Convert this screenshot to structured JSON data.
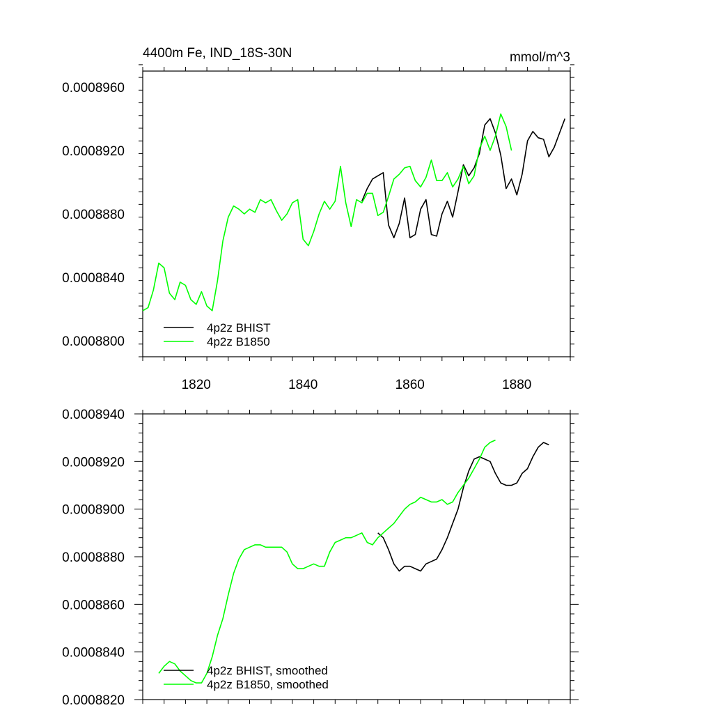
{
  "chart_data": [
    {
      "type": "line",
      "title_left": "4400m Fe, IND_18S-30N",
      "title_right": "mmol/m^3",
      "xlabel": "",
      "ylabel": "",
      "xlim": [
        1810,
        1890
      ],
      "ylim": [
        0.000879,
        0.000897
      ],
      "x_ticks": [
        1820,
        1840,
        1860,
        1880
      ],
      "x_tick_labels": [
        "1820",
        "1840",
        "1860",
        "1880"
      ],
      "y_ticks": [
        0.00088,
        0.000884,
        0.000888,
        0.000892,
        0.000896
      ],
      "y_tick_labels": [
        "0.0008800",
        "0.0008840",
        "0.0008880",
        "0.0008920",
        "0.0008960"
      ],
      "legend_position": "bottom-left",
      "series": [
        {
          "name": "4p2z BHIST",
          "color": "#000000",
          "x": [
            1851,
            1852,
            1853,
            1854,
            1855,
            1856,
            1857,
            1858,
            1859,
            1860,
            1861,
            1862,
            1863,
            1864,
            1865,
            1866,
            1867,
            1868,
            1869,
            1870,
            1871,
            1872,
            1873,
            1874,
            1875,
            1876,
            1877,
            1878,
            1879,
            1880,
            1881,
            1882,
            1883,
            1884,
            1885,
            1886,
            1887,
            1888,
            1889
          ],
          "y": [
            0.0008888,
            0.0008896,
            0.0008902,
            0.0008904,
            0.0008906,
            0.0008873,
            0.0008865,
            0.0008874,
            0.000889,
            0.0008865,
            0.0008867,
            0.0008883,
            0.0008889,
            0.0008867,
            0.0008866,
            0.000888,
            0.0008888,
            0.0008878,
            0.0008894,
            0.0008911,
            0.0008904,
            0.0008909,
            0.0008918,
            0.0008936,
            0.000894,
            0.0008931,
            0.0008917,
            0.0008896,
            0.0008902,
            0.0008892,
            0.0008905,
            0.0008926,
            0.0008932,
            0.0008928,
            0.0008927,
            0.0008916,
            0.0008922,
            0.0008931,
            0.000894
          ]
        },
        {
          "name": "4p2z B1850",
          "color": "#00ff00",
          "x": [
            1810,
            1811,
            1812,
            1813,
            1814,
            1815,
            1816,
            1817,
            1818,
            1819,
            1820,
            1821,
            1822,
            1823,
            1824,
            1825,
            1826,
            1827,
            1828,
            1829,
            1830,
            1831,
            1832,
            1833,
            1834,
            1835,
            1836,
            1837,
            1838,
            1839,
            1840,
            1841,
            1842,
            1843,
            1844,
            1845,
            1846,
            1847,
            1848,
            1849,
            1850,
            1851,
            1852,
            1853,
            1854,
            1855,
            1856,
            1857,
            1858,
            1859,
            1860,
            1861,
            1862,
            1863,
            1864,
            1865,
            1866,
            1867,
            1868,
            1869,
            1870,
            1871,
            1872,
            1873,
            1874,
            1875,
            1876,
            1877,
            1878,
            1879
          ],
          "y": [
            0.0008819,
            0.0008821,
            0.0008832,
            0.0008849,
            0.0008846,
            0.000883,
            0.0008826,
            0.0008837,
            0.0008835,
            0.0008826,
            0.0008823,
            0.0008831,
            0.0008822,
            0.0008819,
            0.0008838,
            0.0008863,
            0.0008878,
            0.0008885,
            0.0008883,
            0.000888,
            0.0008883,
            0.0008881,
            0.0008889,
            0.0008887,
            0.0008889,
            0.0008882,
            0.0008876,
            0.000888,
            0.0008887,
            0.0008889,
            0.0008864,
            0.000886,
            0.0008869,
            0.000888,
            0.0008888,
            0.0008883,
            0.0008888,
            0.000891,
            0.0008887,
            0.0008872,
            0.0008889,
            0.0008887,
            0.0008893,
            0.0008893,
            0.0008879,
            0.0008881,
            0.0008891,
            0.0008902,
            0.0008905,
            0.0008909,
            0.000891,
            0.0008901,
            0.0008897,
            0.0008903,
            0.0008914,
            0.0008901,
            0.0008901,
            0.0008906,
            0.0008897,
            0.0008902,
            0.000891,
            0.0008899,
            0.0008904,
            0.0008921,
            0.0008929,
            0.000892,
            0.0008929,
            0.0008943,
            0.0008935,
            0.000892
          ]
        }
      ]
    },
    {
      "type": "line",
      "title_left": "",
      "title_right": "",
      "xlabel": "",
      "ylabel": "",
      "xlim": [
        1810,
        1890
      ],
      "ylim": [
        0.000882,
        0.000894
      ],
      "x_ticks": [
        1820,
        1840,
        1860,
        1880
      ],
      "x_tick_labels": [],
      "y_ticks": [
        0.000882,
        0.000884,
        0.000886,
        0.000888,
        0.00089,
        0.000892,
        0.000894
      ],
      "y_tick_labels": [
        "0.0008820",
        "0.0008840",
        "0.0008860",
        "0.0008880",
        "0.0008900",
        "0.0008920",
        "0.0008940"
      ],
      "legend_position": "bottom-left",
      "series": [
        {
          "name": "4p2z BHIST, smoothed",
          "color": "#000000",
          "x": [
            1854,
            1855,
            1856,
            1857,
            1858,
            1859,
            1860,
            1861,
            1862,
            1863,
            1864,
            1865,
            1866,
            1867,
            1868,
            1869,
            1870,
            1871,
            1872,
            1873,
            1874,
            1875,
            1876,
            1877,
            1878,
            1879,
            1880,
            1881,
            1882,
            1883,
            1884,
            1885,
            1886
          ],
          "y": [
            0.000889,
            0.0008888,
            0.0008883,
            0.0008877,
            0.0008874,
            0.0008876,
            0.0008876,
            0.0008875,
            0.0008874,
            0.0008877,
            0.0008878,
            0.0008879,
            0.0008883,
            0.0008888,
            0.0008894,
            0.00089,
            0.0008909,
            0.0008916,
            0.0008921,
            0.0008922,
            0.0008921,
            0.000892,
            0.0008915,
            0.0008911,
            0.000891,
            0.000891,
            0.0008911,
            0.0008915,
            0.0008917,
            0.0008922,
            0.0008926,
            0.0008928,
            0.0008927
          ]
        },
        {
          "name": "4p2z B1850, smoothed",
          "color": "#00ff00",
          "x": [
            1813,
            1814,
            1815,
            1816,
            1817,
            1818,
            1819,
            1820,
            1821,
            1822,
            1823,
            1824,
            1825,
            1826,
            1827,
            1828,
            1829,
            1830,
            1831,
            1832,
            1833,
            1834,
            1835,
            1836,
            1837,
            1838,
            1839,
            1840,
            1841,
            1842,
            1843,
            1844,
            1845,
            1846,
            1847,
            1848,
            1849,
            1850,
            1851,
            1852,
            1853,
            1854,
            1855,
            1856,
            1857,
            1858,
            1859,
            1860,
            1861,
            1862,
            1863,
            1864,
            1865,
            1866,
            1867,
            1868,
            1869,
            1870,
            1871,
            1872,
            1873,
            1874,
            1875,
            1876
          ],
          "y": [
            0.0008831,
            0.0008834,
            0.0008836,
            0.0008835,
            0.0008832,
            0.000883,
            0.0008828,
            0.0008827,
            0.0008827,
            0.0008831,
            0.0008838,
            0.0008847,
            0.0008854,
            0.0008864,
            0.0008873,
            0.0008879,
            0.0008883,
            0.0008884,
            0.0008885,
            0.0008885,
            0.0008884,
            0.0008884,
            0.0008884,
            0.0008884,
            0.0008882,
            0.0008877,
            0.0008875,
            0.0008875,
            0.0008876,
            0.0008877,
            0.0008876,
            0.0008876,
            0.0008882,
            0.0008886,
            0.0008887,
            0.0008888,
            0.0008888,
            0.0008889,
            0.000889,
            0.0008886,
            0.0008885,
            0.0008888,
            0.000889,
            0.0008892,
            0.0008894,
            0.0008897,
            0.00089,
            0.0008902,
            0.0008903,
            0.0008905,
            0.0008904,
            0.0008903,
            0.0008903,
            0.0008904,
            0.0008902,
            0.0008903,
            0.0008907,
            0.000891,
            0.0008913,
            0.0008917,
            0.0008921,
            0.0008926,
            0.0008928,
            0.0008929
          ]
        }
      ]
    }
  ]
}
